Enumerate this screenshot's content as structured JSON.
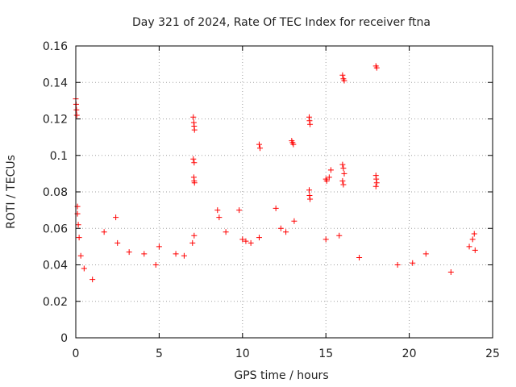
{
  "chart_data": {
    "type": "scatter",
    "title": "Day 321 of 2024, Rate Of TEC Index for receiver ftna",
    "xlabel": "GPS time / hours",
    "ylabel": "ROTI / TECUs",
    "xlim": [
      0,
      25
    ],
    "ylim": [
      0,
      0.16
    ],
    "xticks": [
      0,
      5,
      10,
      15,
      20,
      25
    ],
    "xtick_labels": [
      "0",
      "5",
      "10",
      "15",
      "20",
      "25"
    ],
    "yticks": [
      0,
      0.02,
      0.04,
      0.06,
      0.08,
      0.1,
      0.12,
      0.14,
      0.16
    ],
    "ytick_labels": [
      "0",
      "0.02",
      "0.04",
      "0.06",
      "0.08",
      "0.1",
      "0.12",
      "0.14",
      "0.16"
    ],
    "grid": true,
    "marker": "+",
    "color": "#ff0000",
    "series": [
      {
        "points": [
          [
            0.0,
            0.131
          ],
          [
            0.02,
            0.128
          ],
          [
            0.04,
            0.125
          ],
          [
            0.06,
            0.122
          ],
          [
            0.1,
            0.072
          ],
          [
            0.1,
            0.068
          ],
          [
            0.15,
            0.062
          ],
          [
            0.2,
            0.055
          ],
          [
            0.3,
            0.045
          ],
          [
            0.5,
            0.038
          ],
          [
            1.0,
            0.032
          ],
          [
            1.7,
            0.058
          ],
          [
            2.4,
            0.066
          ],
          [
            2.5,
            0.052
          ],
          [
            3.2,
            0.047
          ],
          [
            4.1,
            0.046
          ],
          [
            4.8,
            0.04
          ],
          [
            5.0,
            0.05
          ],
          [
            6.0,
            0.046
          ],
          [
            6.5,
            0.045
          ],
          [
            7.0,
            0.052
          ],
          [
            7.1,
            0.056
          ],
          [
            7.05,
            0.121
          ],
          [
            7.08,
            0.118
          ],
          [
            7.1,
            0.116
          ],
          [
            7.12,
            0.114
          ],
          [
            7.05,
            0.098
          ],
          [
            7.1,
            0.096
          ],
          [
            7.08,
            0.088
          ],
          [
            7.1,
            0.086
          ],
          [
            7.12,
            0.085
          ],
          [
            8.5,
            0.07
          ],
          [
            8.6,
            0.066
          ],
          [
            9.0,
            0.058
          ],
          [
            9.8,
            0.07
          ],
          [
            10.0,
            0.054
          ],
          [
            10.2,
            0.053
          ],
          [
            10.5,
            0.052
          ],
          [
            11.0,
            0.106
          ],
          [
            11.05,
            0.104
          ],
          [
            11.0,
            0.055
          ],
          [
            12.0,
            0.071
          ],
          [
            12.3,
            0.06
          ],
          [
            12.6,
            0.058
          ],
          [
            12.95,
            0.108
          ],
          [
            13.0,
            0.107
          ],
          [
            13.05,
            0.106
          ],
          [
            13.1,
            0.064
          ],
          [
            14.0,
            0.121
          ],
          [
            14.02,
            0.119
          ],
          [
            14.05,
            0.117
          ],
          [
            14.0,
            0.081
          ],
          [
            14.02,
            0.078
          ],
          [
            14.05,
            0.076
          ],
          [
            15.0,
            0.054
          ],
          [
            15.0,
            0.087
          ],
          [
            15.05,
            0.086
          ],
          [
            15.2,
            0.088
          ],
          [
            15.3,
            0.092
          ],
          [
            15.8,
            0.056
          ],
          [
            16.0,
            0.095
          ],
          [
            16.05,
            0.093
          ],
          [
            16.1,
            0.09
          ],
          [
            16.0,
            0.086
          ],
          [
            16.05,
            0.084
          ],
          [
            16.0,
            0.144
          ],
          [
            16.05,
            0.142
          ],
          [
            16.1,
            0.141
          ],
          [
            17.0,
            0.044
          ],
          [
            18.0,
            0.089
          ],
          [
            18.02,
            0.087
          ],
          [
            18.05,
            0.085
          ],
          [
            18.0,
            0.083
          ],
          [
            18.0,
            0.149
          ],
          [
            18.05,
            0.148
          ],
          [
            19.3,
            0.04
          ],
          [
            20.2,
            0.041
          ],
          [
            21.0,
            0.046
          ],
          [
            22.5,
            0.036
          ],
          [
            23.6,
            0.05
          ],
          [
            23.8,
            0.054
          ],
          [
            23.9,
            0.057
          ],
          [
            23.95,
            0.048
          ]
        ]
      }
    ]
  }
}
